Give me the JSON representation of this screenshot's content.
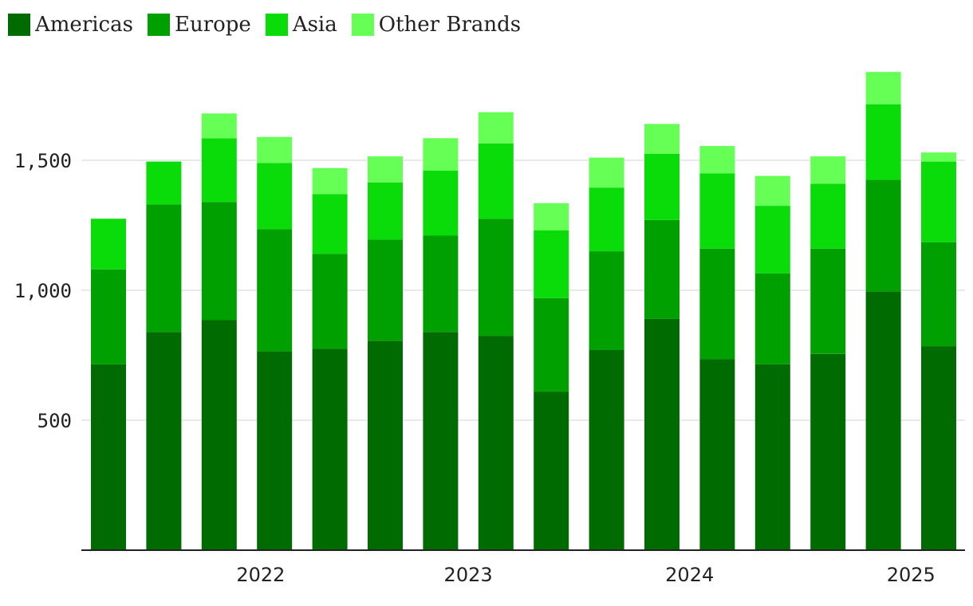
{
  "chart_data": {
    "type": "bar",
    "stacked": true,
    "x_labels": [
      "2022",
      "2023",
      "2024",
      "2025"
    ],
    "y_ticks": [
      500,
      1000,
      1500
    ],
    "y_tick_labels": [
      "500",
      "1,000",
      "1,500"
    ],
    "ylim": [
      0,
      1800
    ],
    "grid": true,
    "legend_position": "top-left",
    "series": [
      {
        "name": "Americas",
        "color": "#006b00",
        "values": [
          715,
          840,
          885,
          765,
          775,
          805,
          840,
          825,
          610,
          770,
          890,
          735,
          715,
          755,
          995,
          785
        ]
      },
      {
        "name": "Europe",
        "color": "#00a000",
        "values": [
          365,
          490,
          455,
          470,
          365,
          390,
          370,
          450,
          360,
          380,
          380,
          425,
          350,
          405,
          430,
          400
        ]
      },
      {
        "name": "Asia",
        "color": "#0adc0a",
        "values": [
          195,
          165,
          245,
          255,
          230,
          220,
          250,
          290,
          260,
          245,
          255,
          290,
          260,
          250,
          290,
          310
        ]
      },
      {
        "name": "Other Brands",
        "color": "#66ff55",
        "values": [
          0,
          0,
          95,
          100,
          100,
          100,
          125,
          120,
          105,
          115,
          115,
          105,
          115,
          105,
          125,
          35
        ]
      }
    ]
  }
}
